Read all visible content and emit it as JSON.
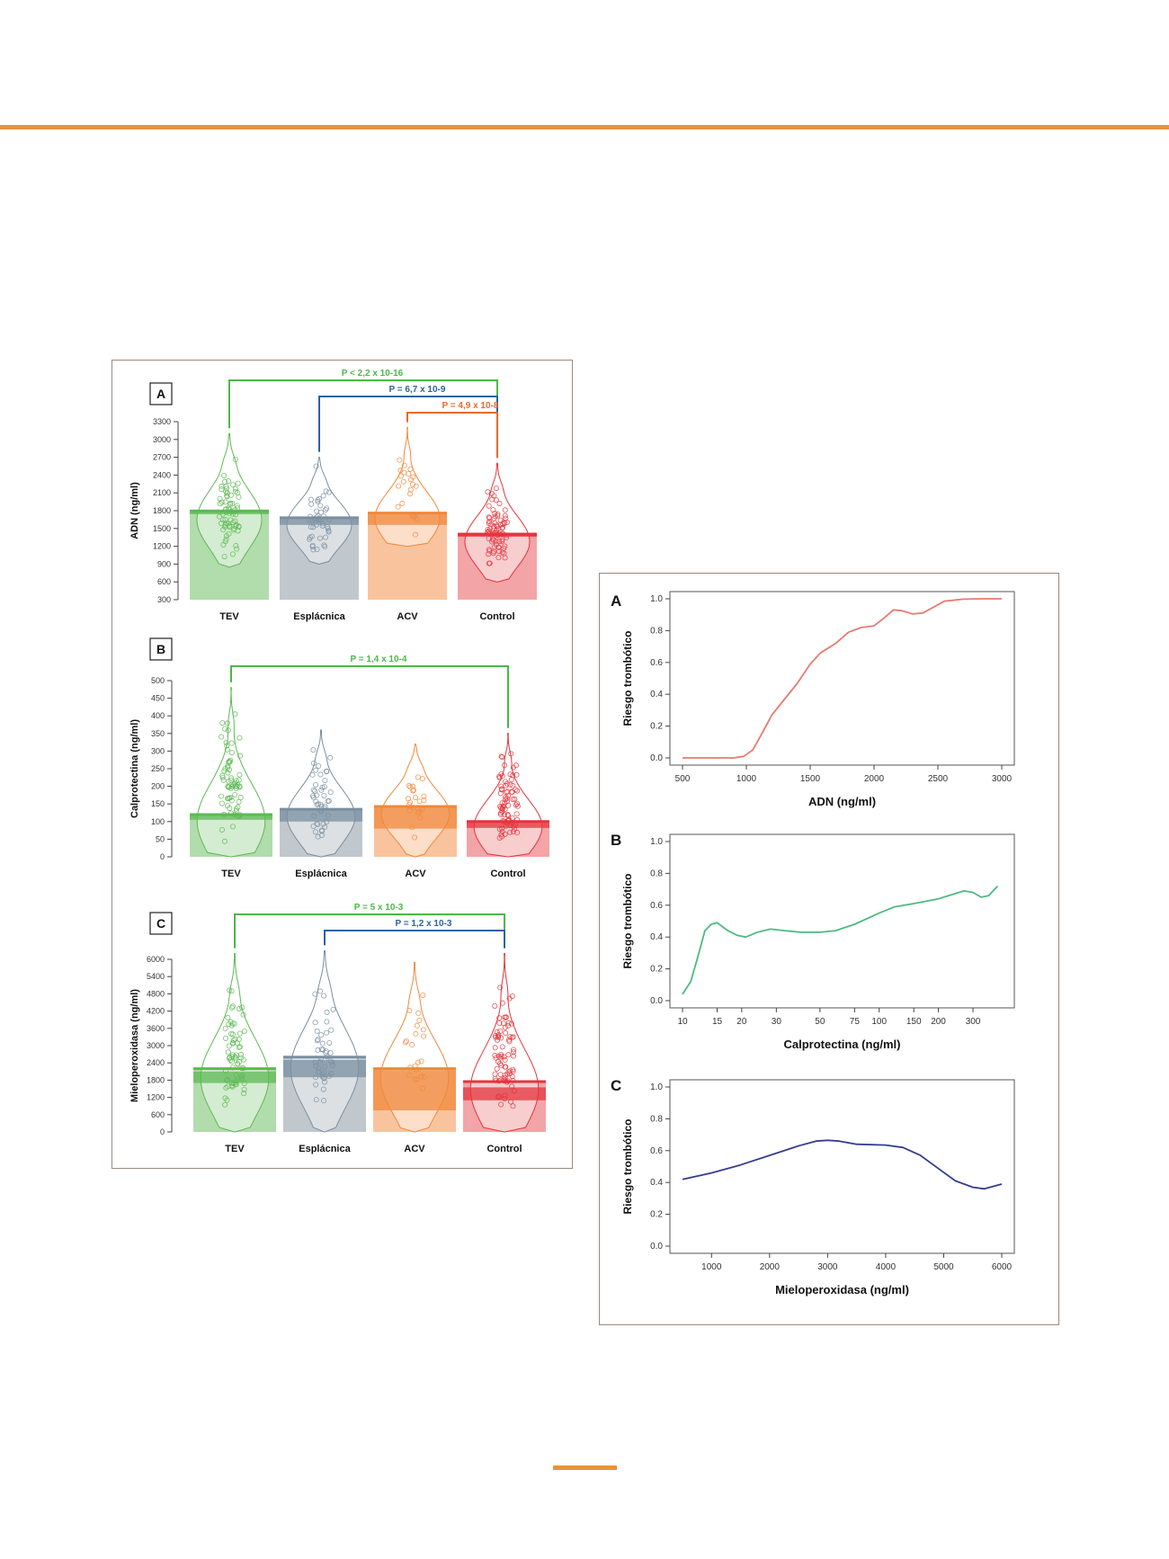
{
  "chart_data": [
    {
      "type": "bar",
      "panel": "A",
      "ylabel": "ADN  (ng/ml)",
      "categories": [
        "TEV",
        "Esplácnica",
        "ACV",
        "Control"
      ],
      "yticks": [
        300,
        600,
        900,
        1200,
        1500,
        1800,
        2100,
        2400,
        2700,
        3000,
        3300
      ],
      "ylim": [
        300,
        3300
      ],
      "values": [
        1790,
        1680,
        1760,
        1400
      ],
      "ci_low": [
        1740,
        1560,
        1560,
        1360
      ],
      "ci_high": [
        1820,
        1670,
        1740,
        1430
      ],
      "violin_range": [
        [
          850,
          3100
        ],
        [
          900,
          2700
        ],
        [
          1200,
          3200
        ],
        [
          600,
          2600
        ]
      ],
      "colors": [
        "#5DB954",
        "#7A8FA0",
        "#F0883C",
        "#E3353C"
      ],
      "fill_colors": [
        "#A9D8A2",
        "#B9C1C8",
        "#F8BE92",
        "#F29A9C"
      ],
      "comparisons": [
        {
          "label": "P < 2,2 x 10-16",
          "from": 0,
          "to": 3,
          "color": "#4CB848"
        },
        {
          "label": "P = 6,7 x 10-9",
          "from": 1,
          "to": 3,
          "color": "#2B62A4"
        },
        {
          "label": "P = 4,9 x 10-8",
          "from": 2,
          "to": 3,
          "color": "#E8692E"
        }
      ]
    },
    {
      "type": "bar",
      "panel": "B",
      "ylabel": "Calprotectina (ng/ml)",
      "categories": [
        "TEV",
        "Esplácnica",
        "ACV",
        "Control"
      ],
      "yticks": [
        0,
        50,
        100,
        150,
        200,
        250,
        300,
        350,
        400,
        450,
        500
      ],
      "ylim": [
        0,
        500
      ],
      "values": [
        120,
        135,
        143,
        100
      ],
      "ci_low": [
        105,
        100,
        80,
        82
      ],
      "ci_high": [
        123,
        135,
        143,
        100
      ],
      "violin_range": [
        [
          0,
          480
        ],
        [
          0,
          360
        ],
        [
          0,
          320
        ],
        [
          0,
          350
        ]
      ],
      "colors": [
        "#5DB954",
        "#7A8FA0",
        "#F0883C",
        "#E3353C"
      ],
      "fill_colors": [
        "#A9D8A2",
        "#B9C1C8",
        "#F8BE92",
        "#F29A9C"
      ],
      "comparisons": [
        {
          "label": "P = 1,4 x 10-4",
          "from": 0,
          "to": 3,
          "color": "#4CB848"
        }
      ]
    },
    {
      "type": "bar",
      "panel": "C",
      "ylabel": "Mieloperoxidasa (ng/ml)",
      "categories": [
        "TEV",
        "Esplácnica",
        "ACV",
        "Control"
      ],
      "yticks": [
        0,
        600,
        1200,
        1800,
        2400,
        3000,
        3600,
        4200,
        4800,
        5400,
        6000
      ],
      "ylim": [
        0,
        6000
      ],
      "values": [
        2200,
        2600,
        2200,
        1750
      ],
      "ci_low": [
        1700,
        1900,
        750,
        1100
      ],
      "ci_high": [
        2100,
        2500,
        2150,
        1550
      ],
      "violin_range": [
        [
          0,
          6200
        ],
        [
          0,
          6300
        ],
        [
          0,
          5900
        ],
        [
          0,
          6200
        ]
      ],
      "colors": [
        "#5DB954",
        "#7A8FA0",
        "#F0883C",
        "#E3353C"
      ],
      "fill_colors": [
        "#A9D8A2",
        "#B9C1C8",
        "#F8BE92",
        "#F29A9C"
      ],
      "comparisons": [
        {
          "label": "P = 5 x 10-3",
          "from": 0,
          "to": 3,
          "color": "#4CB848"
        },
        {
          "label": "P = 1,2 x 10-3",
          "from": 1,
          "to": 3,
          "color": "#2B62A4"
        }
      ]
    },
    {
      "type": "line",
      "panel": "A",
      "xlabel": "ADN (ng/ml)",
      "ylabel": "Riesgo trombótico",
      "xticks": [
        500,
        1000,
        1500,
        2000,
        2500,
        3000
      ],
      "yticks": [
        0.0,
        0.2,
        0.4,
        0.6,
        0.8,
        1.0
      ],
      "xlim": [
        500,
        3000
      ],
      "ylim": [
        0,
        1
      ],
      "color": "#E87A72",
      "x": [
        500,
        700,
        900,
        980,
        1050,
        1120,
        1200,
        1300,
        1400,
        1500,
        1580,
        1700,
        1800,
        1900,
        2000,
        2080,
        2150,
        2220,
        2300,
        2380,
        2450,
        2550,
        2700,
        2850,
        3000
      ],
      "y": [
        0.0,
        0.0,
        0.0,
        0.01,
        0.05,
        0.15,
        0.27,
        0.37,
        0.47,
        0.59,
        0.66,
        0.72,
        0.79,
        0.82,
        0.83,
        0.88,
        0.93,
        0.925,
        0.905,
        0.91,
        0.94,
        0.985,
        0.998,
        1.0,
        1.0
      ]
    },
    {
      "type": "line",
      "panel": "B",
      "xlabel": "Calprotectina (ng/ml)",
      "ylabel": "Riesgo trombótico",
      "xscale": "log",
      "xticks": [
        10,
        15,
        20,
        30,
        50,
        75,
        100,
        150,
        200,
        300
      ],
      "yticks": [
        0.0,
        0.2,
        0.4,
        0.6,
        0.8,
        1.0
      ],
      "xlim": [
        10,
        420
      ],
      "ylim": [
        0,
        1
      ],
      "color": "#4FB980",
      "x": [
        10,
        11,
        12,
        13,
        14,
        15,
        17,
        19,
        21,
        24,
        28,
        33,
        40,
        50,
        60,
        75,
        100,
        120,
        150,
        200,
        240,
        270,
        300,
        330,
        360,
        400
      ],
      "y": [
        0.04,
        0.12,
        0.28,
        0.44,
        0.48,
        0.49,
        0.44,
        0.41,
        0.4,
        0.43,
        0.45,
        0.44,
        0.43,
        0.43,
        0.44,
        0.48,
        0.55,
        0.59,
        0.61,
        0.64,
        0.67,
        0.69,
        0.68,
        0.65,
        0.66,
        0.72
      ]
    },
    {
      "type": "line",
      "panel": "C",
      "xlabel": "Mieloperoxidasa  (ng/ml)",
      "ylabel": "Riesgo trombótico",
      "xticks": [
        1000,
        2000,
        3000,
        4000,
        5000,
        6000
      ],
      "yticks": [
        0.0,
        0.2,
        0.4,
        0.6,
        0.8,
        1.0
      ],
      "xlim": [
        500,
        6000
      ],
      "ylim": [
        0,
        1
      ],
      "color": "#343E8E",
      "x": [
        500,
        1000,
        1500,
        2000,
        2500,
        2800,
        3000,
        3200,
        3500,
        4000,
        4300,
        4600,
        4900,
        5200,
        5500,
        5700,
        6000
      ],
      "y": [
        0.42,
        0.46,
        0.51,
        0.57,
        0.63,
        0.66,
        0.665,
        0.66,
        0.64,
        0.635,
        0.62,
        0.57,
        0.49,
        0.41,
        0.37,
        0.36,
        0.39
      ]
    }
  ]
}
